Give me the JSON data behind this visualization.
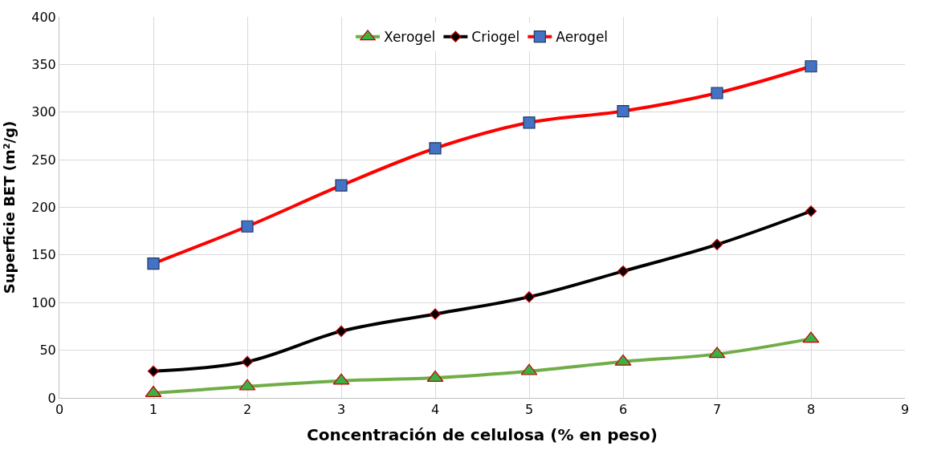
{
  "chart_data": {
    "type": "line",
    "xlabel": "Concentración de celulosa (% en peso)",
    "ylabel": "Superficie BET (m²/g)",
    "x": [
      1,
      2,
      3,
      4,
      5,
      6,
      7,
      8
    ],
    "xlim": [
      0,
      9
    ],
    "xticks": [
      0,
      1,
      2,
      3,
      4,
      5,
      6,
      7,
      8,
      9
    ],
    "ylim": [
      0,
      400
    ],
    "yticks": [
      0,
      50,
      100,
      150,
      200,
      250,
      300,
      350,
      400
    ],
    "grid": true,
    "legend": "top",
    "line_style": "solid",
    "series": [
      {
        "name": "Xerogel",
        "color": "#70ad47",
        "marker": "triangle",
        "values": [
          5,
          12,
          18,
          21,
          28,
          38,
          46,
          62
        ]
      },
      {
        "name": "Criogel",
        "color": "#000000",
        "marker": "diamond",
        "values": [
          28,
          38,
          70,
          88,
          106,
          133,
          161,
          196
        ]
      },
      {
        "name": "Aerogel",
        "color": "#ff0000",
        "marker": "square",
        "values": [
          141,
          180,
          223,
          262,
          289,
          301,
          320,
          348
        ]
      }
    ]
  }
}
